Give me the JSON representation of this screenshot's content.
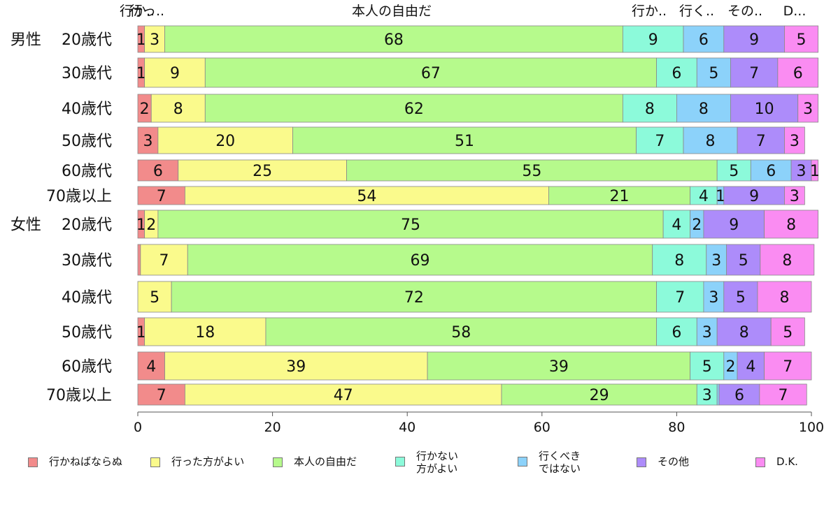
{
  "chart_data": {
    "type": "bar",
    "orientation": "horizontal",
    "stacked": true,
    "xlim": [
      0,
      100
    ],
    "xticks": [
      0,
      20,
      40,
      60,
      80,
      100
    ],
    "top_labels": [
      "行か..",
      "行っ..",
      "本人の自由だ",
      "行か..",
      "行く..",
      "その..",
      "D..."
    ],
    "groups": [
      {
        "label": "男性",
        "categories": [
          "20歳代",
          "30歳代",
          "40歳代",
          "50歳代",
          "60歳代",
          "70歳以上"
        ]
      },
      {
        "label": "女性",
        "categories": [
          "20歳代",
          "30歳代",
          "40歳代",
          "50歳代",
          "60歳代",
          "70歳以上"
        ]
      }
    ],
    "series": [
      {
        "name": "行かねばならぬ",
        "color": "#f28b8b",
        "values": [
          1,
          1,
          2,
          3,
          6,
          7,
          1,
          0.4,
          0,
          1,
          4,
          7
        ],
        "labels": [
          "1",
          "1",
          "2",
          "3",
          "6",
          "7",
          "1",
          "",
          "",
          "1",
          "4",
          "7"
        ]
      },
      {
        "name": "行った方がよい",
        "color": "#fafa8c",
        "values": [
          3,
          9,
          8,
          20,
          25,
          54,
          2,
          7,
          5,
          18,
          39,
          47
        ],
        "labels": [
          "3",
          "9",
          "8",
          "20",
          "25",
          "54",
          "2",
          "7",
          "5",
          "18",
          "39",
          "47"
        ]
      },
      {
        "name": "本人の自由だ",
        "color": "#b6fa8c",
        "values": [
          68,
          67,
          62,
          51,
          55,
          21,
          75,
          69,
          72,
          58,
          39,
          29
        ],
        "labels": [
          "68",
          "67",
          "62",
          "51",
          "55",
          "21",
          "75",
          "69",
          "72",
          "58",
          "39",
          "29"
        ]
      },
      {
        "name": "行かない\n方がよい",
        "color": "#8cfada",
        "values": [
          9,
          6,
          8,
          7,
          5,
          4,
          4,
          8,
          7,
          6,
          5,
          3
        ],
        "labels": [
          "9",
          "6",
          "8",
          "7",
          "5",
          "4",
          "4",
          "8",
          "7",
          "6",
          "5",
          "3"
        ]
      },
      {
        "name": "行くべき\nではない",
        "color": "#8cd2fa",
        "values": [
          6,
          5,
          8,
          8,
          6,
          1,
          2,
          3,
          3,
          3,
          2,
          0.3
        ],
        "labels": [
          "6",
          "5",
          "8",
          "8",
          "6",
          "1",
          "2",
          "3",
          "3",
          "3",
          "2",
          ""
        ]
      },
      {
        "name": "その他",
        "color": "#ad8cfa",
        "values": [
          9,
          7,
          10,
          7,
          3,
          9,
          9,
          5,
          5,
          8,
          4,
          6
        ],
        "labels": [
          "9",
          "7",
          "10",
          "7",
          "3",
          "9",
          "9",
          "5",
          "5",
          "8",
          "4",
          "6"
        ]
      },
      {
        "name": "D.K.",
        "color": "#fa8cf2",
        "values": [
          5,
          6,
          3,
          3,
          1,
          3,
          8,
          8,
          8,
          5,
          7,
          7
        ],
        "labels": [
          "5",
          "6",
          "3",
          "3",
          "1",
          "3",
          "8",
          "8",
          "8",
          "5",
          "7",
          "7"
        ]
      }
    ]
  }
}
